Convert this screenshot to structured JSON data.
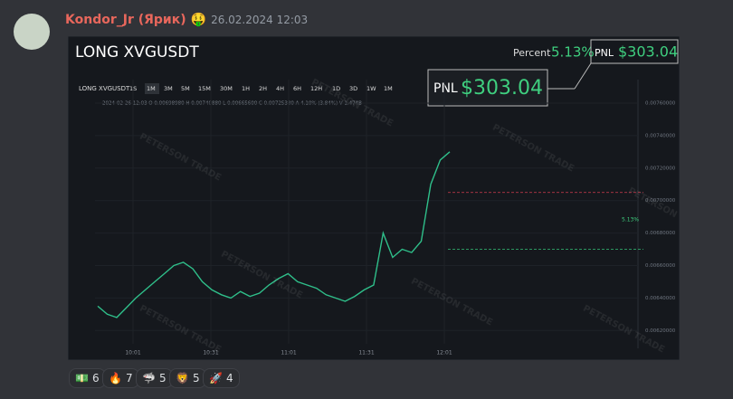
{
  "message": {
    "author": "Kondor_Jr (Ярик)",
    "author_emoji": "🤑",
    "timestamp": "26.02.2024 12:03"
  },
  "card": {
    "title": "LONG XVGUSDT",
    "percent_label": "Percent",
    "percent": "5.13%",
    "pnl_label": "PNL",
    "pnl": "$303.04",
    "big_pnl_label": "PNL",
    "big_pnl": "$303.04",
    "watermark": "PETERSON TRADE"
  },
  "trade_chart": {
    "symbol": "LONG XVGUSDT",
    "intervals": [
      "1S",
      "1M",
      "3M",
      "5M",
      "15M",
      "30M",
      "1H",
      "2H",
      "4H",
      "6H",
      "12H",
      "1D",
      "3D",
      "1W",
      "1M"
    ],
    "ohlc": "2024-02-26 12:03  O 0.00698980  H 0.00740880  L 0.00665600  C 0.00725380  A 4.10%  (3.84%)  V 1.474B",
    "yticks": [
      {
        "value": 0.0076,
        "label": "0.00760000"
      },
      {
        "value": 0.0074,
        "label": "0.00740000"
      },
      {
        "value": 0.0072,
        "label": "0.00720000"
      },
      {
        "value": 0.007,
        "label": "0.00700000"
      },
      {
        "value": 0.0068,
        "label": "0.00680000"
      },
      {
        "value": 0.0066,
        "label": "0.00660000"
      },
      {
        "value": 0.0064,
        "label": "0.00640000"
      },
      {
        "value": 0.0062,
        "label": "0.00620000"
      }
    ],
    "times": [
      "10:01",
      "10:31",
      "11:01",
      "11:31",
      "12:01"
    ],
    "percent_tag": "5.13%",
    "levels": [
      0.00705,
      0.0067
    ],
    "closes": [
      0.00635,
      0.0063,
      0.00628,
      0.00634,
      0.0064,
      0.00645,
      0.0065,
      0.00655,
      0.0066,
      0.00662,
      0.00658,
      0.0065,
      0.00645,
      0.00642,
      0.0064,
      0.00644,
      0.00641,
      0.00643,
      0.00648,
      0.00652,
      0.00655,
      0.0065,
      0.00648,
      0.00646,
      0.00642,
      0.0064,
      0.00638,
      0.00641,
      0.00645,
      0.00648,
      0.0068,
      0.00665,
      0.0067,
      0.00668,
      0.00675,
      0.0071,
      0.00725,
      0.0073
    ]
  },
  "reactions": [
    {
      "emoji": "💵",
      "count": "6"
    },
    {
      "emoji": "🔥",
      "count": "7"
    },
    {
      "emoji": "🦈",
      "count": "5"
    },
    {
      "emoji": "🦁",
      "count": "5"
    },
    {
      "emoji": "🚀",
      "count": "4"
    }
  ]
}
